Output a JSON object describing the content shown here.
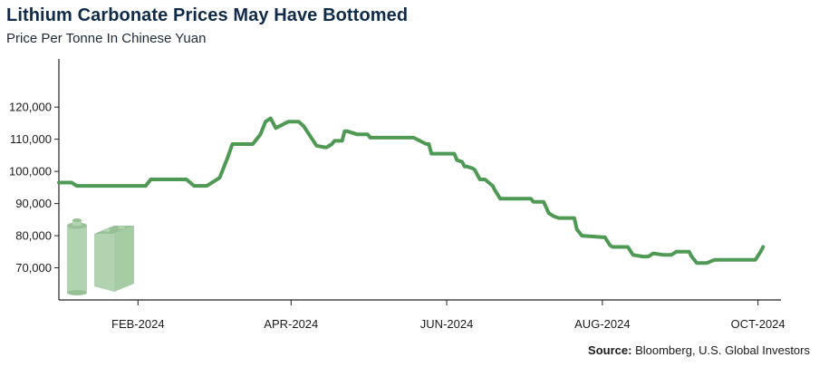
{
  "title": "Lithium Carbonate Prices May Have Bottomed",
  "subtitle": "Price Per Tonne In Chinese Yuan",
  "source": {
    "label": "Source:",
    "text": "Bloomberg, U.S. Global Investors"
  },
  "colors": {
    "line": "#4e9a55",
    "icon_fill": "#b2d3b0",
    "axis": "#222222",
    "title": "#102b49"
  },
  "icon": "battery-cells-icon",
  "chart_data": {
    "type": "line",
    "title": "Lithium Carbonate Prices May Have Bottomed",
    "subtitle": "Price Per Tonne In Chinese Yuan",
    "xlabel": "",
    "ylabel": "",
    "ylim": [
      60000,
      135000
    ],
    "xlim": [
      "2024-01-01",
      "2024-10-10"
    ],
    "y_ticks": [
      70000,
      80000,
      90000,
      100000,
      110000,
      120000
    ],
    "y_tick_labels": [
      "70,000",
      "80,000",
      "90,000",
      "100,000",
      "110,000",
      "120,000"
    ],
    "x_ticks": [
      "2024-02-01",
      "2024-04-01",
      "2024-06-01",
      "2024-08-01",
      "2024-10-01"
    ],
    "x_tick_labels": [
      "FEB-2024",
      "APR-2024",
      "JUN-2024",
      "AUG-2024",
      "OCT-2024"
    ],
    "grid": false,
    "legend": "none",
    "series": [
      {
        "x": [
          "2024-01-01",
          "2024-01-06",
          "2024-01-08",
          "2024-01-12",
          "2024-02-01",
          "2024-02-04",
          "2024-02-06",
          "2024-02-20",
          "2024-02-23",
          "2024-02-28",
          "2024-03-04",
          "2024-03-07",
          "2024-03-09",
          "2024-03-13",
          "2024-03-17",
          "2024-03-20",
          "2024-03-22",
          "2024-03-24",
          "2024-03-26",
          "2024-03-31",
          "2024-04-02",
          "2024-04-04",
          "2024-04-06",
          "2024-04-11",
          "2024-04-14",
          "2024-04-15",
          "2024-04-17",
          "2024-04-18",
          "2024-04-21",
          "2024-04-22",
          "2024-04-23",
          "2024-04-27",
          "2024-05-01",
          "2024-05-02",
          "2024-05-04",
          "2024-05-12",
          "2024-05-19",
          "2024-05-24",
          "2024-05-25",
          "2024-05-26",
          "2024-06-01",
          "2024-06-02",
          "2024-06-04",
          "2024-06-05",
          "2024-06-07",
          "2024-06-08",
          "2024-06-09",
          "2024-06-11",
          "2024-06-12",
          "2024-06-14",
          "2024-06-16",
          "2024-06-19",
          "2024-06-20",
          "2024-06-22",
          "2024-06-26",
          "2024-07-01",
          "2024-07-04",
          "2024-07-05",
          "2024-07-06",
          "2024-07-09",
          "2024-07-11",
          "2024-07-13",
          "2024-07-15",
          "2024-07-16",
          "2024-07-21",
          "2024-07-22",
          "2024-07-24",
          "2024-08-01",
          "2024-08-02",
          "2024-08-04",
          "2024-08-05",
          "2024-08-11",
          "2024-08-13",
          "2024-08-17",
          "2024-08-19",
          "2024-08-21",
          "2024-08-25",
          "2024-08-27",
          "2024-08-28",
          "2024-08-30",
          "2024-09-04",
          "2024-09-05",
          "2024-09-07",
          "2024-09-11",
          "2024-09-14",
          "2024-09-16",
          "2024-09-19",
          "2024-09-20",
          "2024-09-26",
          "2024-09-30",
          "2024-10-02",
          "2024-10-03"
        ],
        "values": [
          96500,
          96500,
          95500,
          95500,
          95500,
          95500,
          97500,
          97500,
          95500,
          95500,
          98000,
          104000,
          108500,
          108500,
          108500,
          111500,
          115500,
          116500,
          113500,
          115500,
          115500,
          115500,
          114000,
          108000,
          107500,
          107500,
          108500,
          109500,
          109500,
          112500,
          112500,
          111500,
          111500,
          110500,
          110500,
          110500,
          110500,
          108500,
          108500,
          105500,
          105500,
          105500,
          105500,
          103500,
          103000,
          101500,
          101500,
          101000,
          100500,
          97500,
          97500,
          95500,
          94000,
          91500,
          91500,
          91500,
          91500,
          90500,
          90500,
          90500,
          87000,
          86000,
          85500,
          85500,
          85500,
          82000,
          80000,
          79500,
          79500,
          77000,
          76500,
          76500,
          74000,
          73500,
          73500,
          74500,
          74000,
          74000,
          74000,
          75000,
          75000,
          73500,
          71500,
          71500,
          72500,
          72500,
          72500,
          72500,
          72500,
          72500,
          75000,
          76500
        ]
      }
    ]
  }
}
